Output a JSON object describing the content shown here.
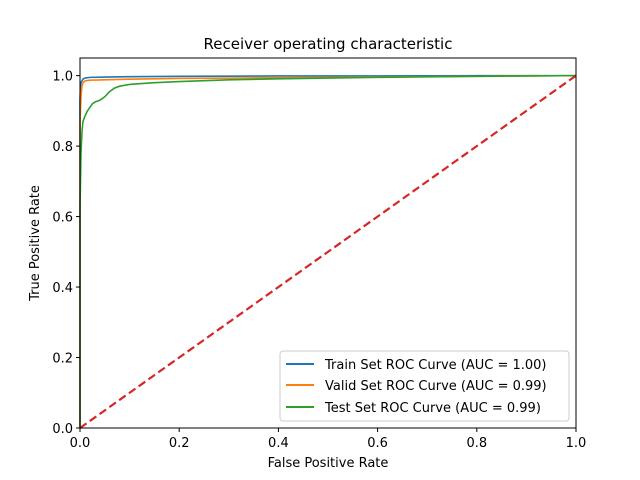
{
  "chart_data": {
    "type": "line",
    "title": "Receiver operating characteristic",
    "xlabel": "False Positive Rate",
    "ylabel": "True Positive Rate",
    "xlim": [
      0.0,
      1.0
    ],
    "ylim": [
      0.0,
      1.05
    ],
    "xticks": [
      0.0,
      0.2,
      0.4,
      0.6,
      0.8,
      1.0
    ],
    "xtick_labels": [
      "0.0",
      "0.2",
      "0.4",
      "0.6",
      "0.8",
      "1.0"
    ],
    "yticks": [
      0.0,
      0.2,
      0.4,
      0.6,
      0.8,
      1.0
    ],
    "ytick_labels": [
      "0.0",
      "0.2",
      "0.4",
      "0.6",
      "0.8",
      "1.0"
    ],
    "grid": false,
    "legend_position": "bottom-right",
    "series": [
      {
        "name": "Train Set ROC Curve (AUC = 1.00)",
        "color": "#1f77b4",
        "dashed": false,
        "x": [
          0.0,
          0.0,
          0.001,
          0.002,
          0.004,
          0.006,
          0.01,
          0.02,
          0.05,
          0.1,
          0.2,
          0.4,
          0.6,
          0.8,
          1.0
        ],
        "y": [
          0.0,
          0.93,
          0.97,
          0.98,
          0.985,
          0.99,
          0.993,
          0.995,
          0.996,
          0.997,
          0.998,
          0.999,
          0.999,
          1.0,
          1.0
        ]
      },
      {
        "name": "Valid Set ROC Curve (AUC = 0.99)",
        "color": "#ff7f0e",
        "dashed": false,
        "x": [
          0.0,
          0.0,
          0.002,
          0.004,
          0.006,
          0.01,
          0.02,
          0.05,
          0.1,
          0.2,
          0.4,
          0.6,
          0.8,
          1.0
        ],
        "y": [
          0.0,
          0.87,
          0.94,
          0.97,
          0.98,
          0.985,
          0.987,
          0.988,
          0.99,
          0.992,
          0.994,
          0.996,
          0.998,
          1.0
        ]
      },
      {
        "name": "Test Set ROC Curve (AUC = 0.99)",
        "color": "#2ca02c",
        "dashed": false,
        "x": [
          0.0,
          0.0,
          0.002,
          0.004,
          0.006,
          0.01,
          0.015,
          0.02,
          0.025,
          0.03,
          0.04,
          0.05,
          0.06,
          0.065,
          0.07,
          0.08,
          0.1,
          0.12,
          0.15,
          0.2,
          0.3,
          0.4,
          0.5,
          0.6,
          0.8,
          1.0
        ],
        "y": [
          0.0,
          0.63,
          0.78,
          0.84,
          0.87,
          0.885,
          0.9,
          0.91,
          0.92,
          0.925,
          0.93,
          0.94,
          0.955,
          0.96,
          0.965,
          0.97,
          0.975,
          0.977,
          0.98,
          0.983,
          0.988,
          0.991,
          0.993,
          0.995,
          0.998,
          1.0
        ]
      },
      {
        "name": "",
        "color": "#d62728",
        "dashed": true,
        "x": [
          0.0,
          1.0
        ],
        "y": [
          0.0,
          1.0
        ]
      }
    ]
  }
}
